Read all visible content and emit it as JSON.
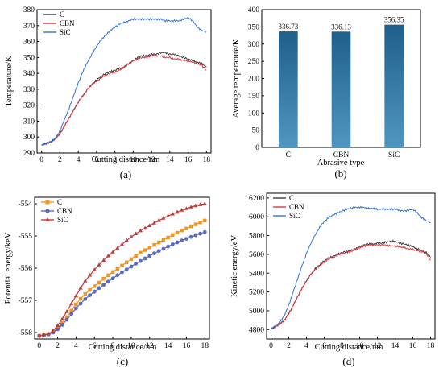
{
  "colors": {
    "C": "#3a3a3a",
    "CBN": "#e0353b",
    "SiC": "#2f73d6",
    "bar_top": "#1f5f8b",
    "bar_bottom": "#4f97c0",
    "pe_C": "#f29420",
    "pe_CBN": "#5a6cc0",
    "pe_SiC": "#c23b3b"
  },
  "chart_data": [
    {
      "id": "a",
      "type": "line",
      "panel_label": "(a)",
      "xlabel": "Cutting distance/nm",
      "ylabel": "Temperature/K",
      "xlim": [
        -0.5,
        18.5
      ],
      "ylim": [
        290,
        380
      ],
      "xticks": [
        "0",
        "2",
        "4",
        "6",
        "8",
        "10",
        "12",
        "14",
        "16",
        "18"
      ],
      "yticks": [
        "290",
        "300",
        "310",
        "320",
        "330",
        "340",
        "350",
        "360",
        "370",
        "380"
      ],
      "legend_position": "top-left",
      "x": [
        0,
        0.5,
        1,
        1.5,
        2,
        2.5,
        3,
        3.5,
        4,
        4.5,
        5,
        5.5,
        6,
        6.5,
        7,
        7.5,
        8,
        8.5,
        9,
        9.5,
        10,
        10.5,
        11,
        11.5,
        12,
        12.5,
        13,
        13.5,
        14,
        14.5,
        15,
        15.5,
        16,
        16.5,
        17,
        17.5,
        18
      ],
      "series": [
        {
          "name": "C",
          "values": [
            295,
            296,
            297,
            299,
            302,
            307,
            312,
            317,
            322,
            326,
            330,
            333,
            336,
            338,
            340,
            341,
            342,
            343,
            344,
            346,
            348,
            350,
            351,
            351,
            352,
            352,
            353,
            353,
            352,
            352,
            351,
            350,
            349,
            348,
            347,
            346,
            344
          ]
        },
        {
          "name": "CBN",
          "values": [
            295,
            296,
            297,
            299,
            302,
            307,
            312,
            317,
            322,
            326,
            330,
            333,
            335,
            337,
            339,
            340,
            341,
            342,
            344,
            346,
            348,
            349,
            350,
            350,
            351,
            351,
            351,
            350,
            350,
            349,
            349,
            348,
            348,
            347,
            346,
            345,
            342
          ]
        },
        {
          "name": "SiC",
          "values": [
            295,
            296,
            297,
            299,
            304,
            311,
            318,
            326,
            334,
            341,
            347,
            352,
            357,
            361,
            364,
            367,
            369,
            371,
            372,
            373,
            374,
            374,
            374,
            374,
            374,
            374,
            374,
            373,
            373,
            373,
            373,
            374,
            375,
            373,
            369,
            367,
            366
          ]
        }
      ]
    },
    {
      "id": "b",
      "type": "bar",
      "panel_label": "(b)",
      "xlabel": "Abrasive type",
      "ylabel": "Average temperature/K",
      "ylim": [
        0,
        400
      ],
      "yticks": [
        "0",
        "50",
        "100",
        "150",
        "200",
        "250",
        "300",
        "350",
        "400"
      ],
      "categories": [
        "C",
        "CBN",
        "SiC"
      ],
      "values": [
        336.73,
        336.13,
        356.35
      ],
      "value_labels": [
        "336.73",
        "336.13",
        "356.35"
      ]
    },
    {
      "id": "c",
      "type": "line",
      "panel_label": "(c)",
      "xlabel": "Cutting distance/nm",
      "ylabel": "Potential energy/keV",
      "xlim": [
        -0.5,
        18.5
      ],
      "ylim": [
        -558.2,
        -553.8
      ],
      "xticks": [
        "0",
        "2",
        "4",
        "6",
        "8",
        "10",
        "12",
        "14",
        "16",
        "18"
      ],
      "yticks": [
        "-558",
        "-557",
        "-556",
        "-555",
        "-554"
      ],
      "legend_position": "top-left",
      "x": [
        0,
        0.5,
        1,
        1.5,
        2,
        2.5,
        3,
        3.5,
        4,
        4.5,
        5,
        5.5,
        6,
        6.5,
        7,
        7.5,
        8,
        8.5,
        9,
        9.5,
        10,
        10.5,
        11,
        11.5,
        12,
        12.5,
        13,
        13.5,
        14,
        14.5,
        15,
        15.5,
        16,
        16.5,
        17,
        17.5,
        18
      ],
      "series": [
        {
          "name": "C",
          "values": [
            -558.1,
            -558.08,
            -558.05,
            -557.98,
            -557.85,
            -557.7,
            -557.52,
            -557.32,
            -557.12,
            -556.95,
            -556.8,
            -556.68,
            -556.56,
            -556.45,
            -556.33,
            -556.22,
            -556.12,
            -556.02,
            -555.92,
            -555.82,
            -555.72,
            -555.62,
            -555.52,
            -555.44,
            -555.36,
            -555.28,
            -555.2,
            -555.12,
            -555.05,
            -554.97,
            -554.9,
            -554.83,
            -554.77,
            -554.7,
            -554.64,
            -554.58,
            -554.52
          ]
        },
        {
          "name": "CBN",
          "values": [
            -558.1,
            -558.08,
            -558.06,
            -558.0,
            -557.9,
            -557.76,
            -557.6,
            -557.42,
            -557.25,
            -557.1,
            -556.96,
            -556.84,
            -556.73,
            -556.62,
            -556.52,
            -556.42,
            -556.32,
            -556.22,
            -556.13,
            -556.04,
            -555.95,
            -555.86,
            -555.78,
            -555.7,
            -555.62,
            -555.54,
            -555.47,
            -555.4,
            -555.33,
            -555.26,
            -555.2,
            -555.14,
            -555.09,
            -555.03,
            -554.98,
            -554.93,
            -554.88
          ]
        },
        {
          "name": "SiC",
          "values": [
            -558.1,
            -558.07,
            -558.04,
            -557.95,
            -557.78,
            -557.58,
            -557.35,
            -557.1,
            -556.86,
            -556.62,
            -556.4,
            -556.22,
            -556.05,
            -555.9,
            -555.76,
            -555.62,
            -555.5,
            -555.38,
            -555.26,
            -555.14,
            -555.03,
            -554.93,
            -554.84,
            -554.76,
            -554.68,
            -554.6,
            -554.52,
            -554.45,
            -554.38,
            -554.32,
            -554.26,
            -554.2,
            -554.15,
            -554.1,
            -554.06,
            -554.03,
            -554.0
          ]
        }
      ]
    },
    {
      "id": "d",
      "type": "line",
      "panel_label": "(d)",
      "xlabel": "Cutting distance/nm",
      "ylabel": "Kinetic energy/eV",
      "xlim": [
        -0.5,
        18.5
      ],
      "ylim": [
        4700,
        6250
      ],
      "xticks": [
        "0",
        "2",
        "4",
        "6",
        "8",
        "10",
        "12",
        "14",
        "16",
        "18"
      ],
      "yticks": [
        "4800",
        "5000",
        "5200",
        "5400",
        "5600",
        "5800",
        "6000",
        "6200"
      ],
      "legend_position": "top-left",
      "x": [
        0,
        0.5,
        1,
        1.5,
        2,
        2.5,
        3,
        3.5,
        4,
        4.5,
        5,
        5.5,
        6,
        6.5,
        7,
        7.5,
        8,
        8.5,
        9,
        9.5,
        10,
        10.5,
        11,
        11.5,
        12,
        12.5,
        13,
        13.5,
        14,
        14.5,
        15,
        15.5,
        16,
        16.5,
        17,
        17.5,
        18
      ],
      "series": [
        {
          "name": "C",
          "values": [
            4810,
            4830,
            4860,
            4900,
            4970,
            5060,
            5150,
            5240,
            5320,
            5390,
            5450,
            5490,
            5530,
            5560,
            5580,
            5600,
            5620,
            5630,
            5640,
            5660,
            5680,
            5700,
            5710,
            5710,
            5720,
            5720,
            5730,
            5740,
            5740,
            5720,
            5710,
            5700,
            5680,
            5660,
            5640,
            5620,
            5570
          ]
        },
        {
          "name": "CBN",
          "values": [
            4810,
            4830,
            4860,
            4900,
            4970,
            5060,
            5150,
            5240,
            5320,
            5390,
            5440,
            5480,
            5520,
            5550,
            5570,
            5590,
            5610,
            5620,
            5630,
            5650,
            5670,
            5690,
            5700,
            5700,
            5700,
            5700,
            5700,
            5690,
            5690,
            5680,
            5670,
            5660,
            5650,
            5640,
            5630,
            5610,
            5540
          ]
        },
        {
          "name": "SiC",
          "values": [
            4810,
            4830,
            4880,
            4950,
            5060,
            5200,
            5340,
            5480,
            5610,
            5720,
            5810,
            5890,
            5950,
            5990,
            6020,
            6040,
            6060,
            6080,
            6090,
            6100,
            6100,
            6100,
            6090,
            6090,
            6080,
            6080,
            6080,
            6080,
            6080,
            6070,
            6060,
            6070,
            6080,
            6040,
            5990,
            5960,
            5940
          ]
        }
      ]
    }
  ]
}
